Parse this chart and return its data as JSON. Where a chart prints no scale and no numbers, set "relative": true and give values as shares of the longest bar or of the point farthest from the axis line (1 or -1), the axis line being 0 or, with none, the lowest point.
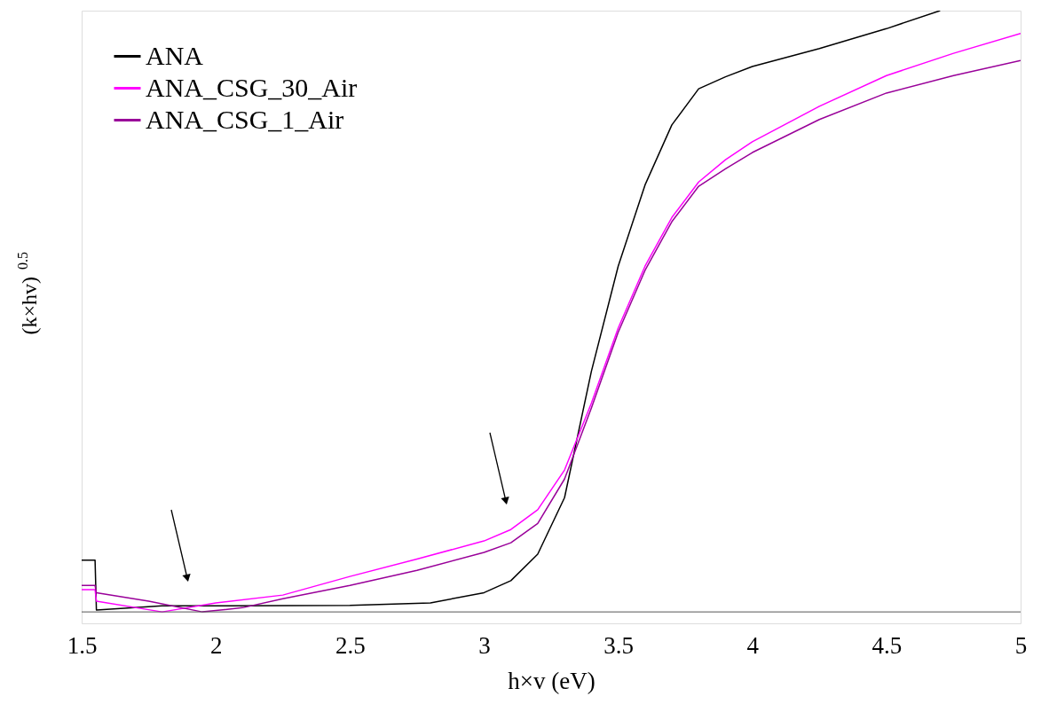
{
  "chart_data": {
    "type": "line",
    "xlabel": "h×v (eV)",
    "ylabel": "(k×hv) $^{0.5}$",
    "relative": true,
    "xlim": [
      1.5,
      5
    ],
    "xticks": [
      1.5,
      2,
      2.5,
      3,
      3.5,
      4,
      4.5,
      5
    ],
    "grid": false,
    "legend": "top left",
    "series": [
      {
        "name": "ANA",
        "color": "#000000",
        "x": [
          1.5,
          1.55,
          1.555,
          1.8,
          2.0,
          2.5,
          2.8,
          3.0,
          3.1,
          3.2,
          3.3,
          3.4,
          3.5,
          3.6,
          3.7,
          3.8,
          3.9,
          4.0,
          4.25,
          4.5,
          4.7
        ],
        "values": [
          0.086,
          0.086,
          0.003,
          0.01,
          0.01,
          0.011,
          0.015,
          0.032,
          0.052,
          0.096,
          0.19,
          0.4,
          0.575,
          0.71,
          0.81,
          0.87,
          0.89,
          0.907,
          0.937,
          0.97,
          1.0
        ]
      },
      {
        "name": "ANA_CSG_30_Air",
        "color": "#ff00ff",
        "x": [
          1.5,
          1.55,
          1.555,
          1.8,
          2.0,
          2.25,
          2.5,
          2.75,
          3.0,
          3.1,
          3.2,
          3.3,
          3.4,
          3.5,
          3.6,
          3.7,
          3.8,
          3.9,
          4.0,
          4.25,
          4.5,
          4.75,
          5.0
        ],
        "values": [
          0.037,
          0.037,
          0.018,
          0.0,
          0.015,
          0.028,
          0.059,
          0.088,
          0.118,
          0.137,
          0.17,
          0.236,
          0.347,
          0.472,
          0.575,
          0.656,
          0.715,
          0.752,
          0.782,
          0.841,
          0.892,
          0.929,
          0.962
        ]
      },
      {
        "name": "ANA_CSG_1_Air",
        "color": "#990099",
        "x": [
          1.5,
          1.55,
          1.555,
          1.75,
          1.95,
          2.1,
          2.25,
          2.5,
          2.75,
          3.0,
          3.1,
          3.2,
          3.3,
          3.4,
          3.5,
          3.6,
          3.7,
          3.8,
          3.9,
          4.0,
          4.25,
          4.5,
          4.75,
          5.0
        ],
        "values": [
          0.044,
          0.044,
          0.032,
          0.018,
          0.0,
          0.007,
          0.022,
          0.044,
          0.069,
          0.099,
          0.115,
          0.147,
          0.221,
          0.339,
          0.465,
          0.568,
          0.649,
          0.708,
          0.737,
          0.764,
          0.819,
          0.863,
          0.892,
          0.917
        ]
      }
    ]
  }
}
